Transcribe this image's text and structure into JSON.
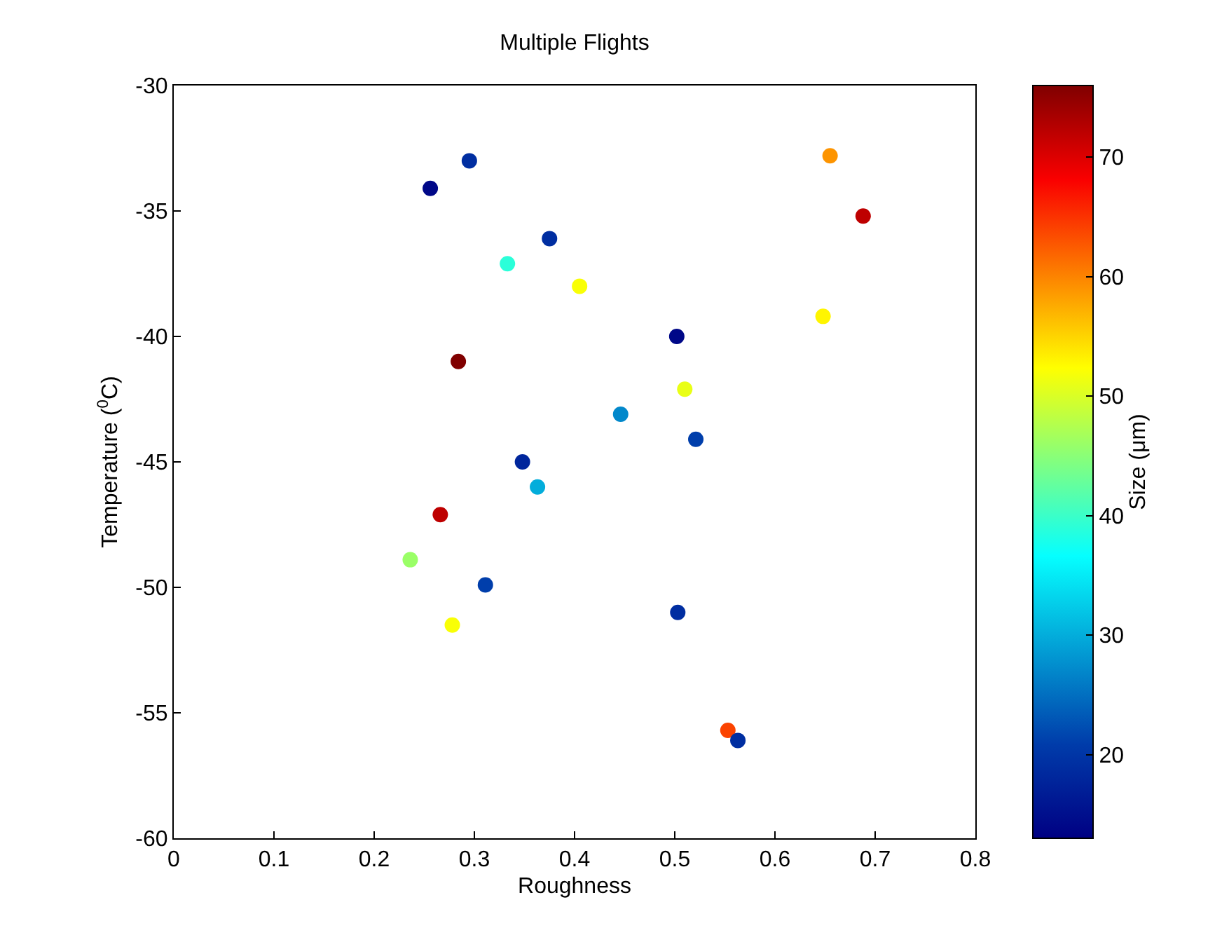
{
  "chart_data": {
    "type": "scatter",
    "title": "Multiple Flights",
    "xlabel": "Roughness",
    "ylabel": "Temperature ($^{0}$C)",
    "clabel": "Size (μm)",
    "x": [
      0.256,
      0.295,
      0.375,
      0.333,
      0.405,
      0.502,
      0.284,
      0.51,
      0.446,
      0.521,
      0.348,
      0.363,
      0.266,
      0.236,
      0.311,
      0.278,
      0.503,
      0.553,
      0.563,
      0.655,
      0.688,
      0.648
    ],
    "values": [
      -34.1,
      -33.0,
      -36.1,
      -37.1,
      -38.0,
      -40.0,
      -41.0,
      -42.1,
      -43.1,
      -44.1,
      -45.0,
      -46.0,
      -47.1,
      -48.9,
      -49.9,
      -51.5,
      -51.0,
      -55.7,
      -56.1,
      -32.8,
      -35.2,
      -39.2
    ],
    "cvalues": [
      14,
      19,
      19,
      39,
      52,
      14,
      76,
      51,
      27,
      21,
      18,
      30,
      72,
      46,
      21,
      52,
      19,
      64,
      19,
      59,
      72,
      53
    ],
    "clim": [
      13,
      76
    ],
    "cticks": [
      20,
      30,
      40,
      50,
      60,
      70
    ],
    "xlim": [
      0,
      0.8
    ],
    "xticks": [
      0,
      0.1,
      0.2,
      0.3,
      0.4,
      0.5,
      0.6,
      0.7,
      0.8
    ],
    "ylim": [
      -60,
      -30
    ],
    "yticks": [
      -60,
      -55,
      -50,
      -45,
      -40,
      -35,
      -30
    ],
    "grid": false,
    "marker": "circle"
  }
}
